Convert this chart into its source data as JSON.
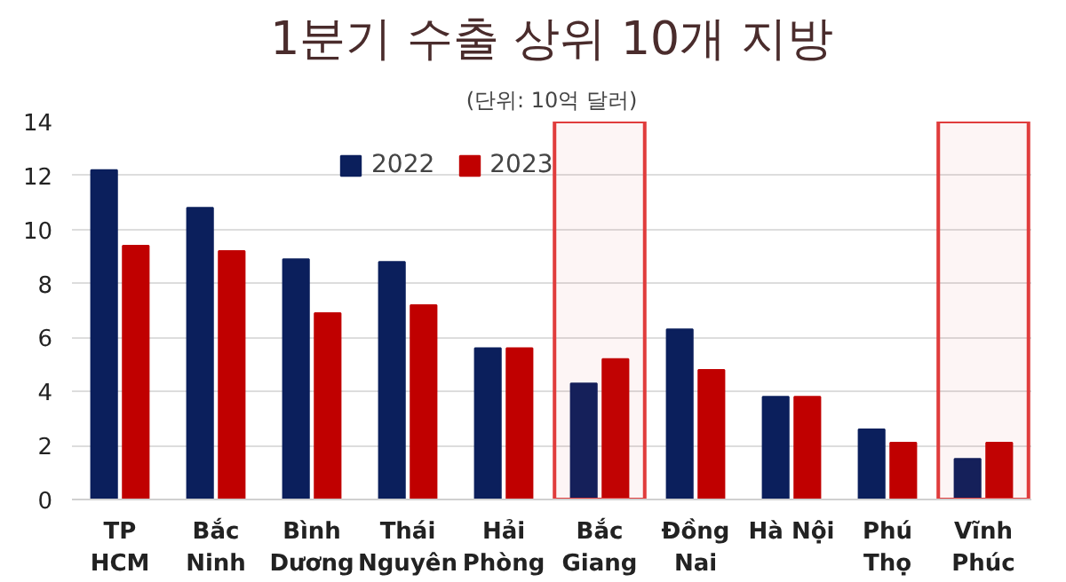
{
  "chart_data": {
    "type": "bar",
    "title": "1분기 수출 상위 10개 지방",
    "subtitle": "(단위: 10억 달러)",
    "categories": [
      "TP\nHCM",
      "Bắc\nNinh",
      "Bình\nDương",
      "Thái\nNguyên",
      "Hải\nPhòng",
      "Bắc\nGiang",
      "Đồng\nNai",
      "Hà Nội",
      "Phú\nThọ",
      "Vĩnh\nPhúc"
    ],
    "series": [
      {
        "name": "2022",
        "color": "#0b1f5c",
        "values": [
          12.2,
          10.8,
          8.9,
          8.8,
          5.6,
          4.3,
          6.3,
          3.8,
          2.6,
          1.5
        ]
      },
      {
        "name": "2023",
        "color": "#c00000",
        "values": [
          9.4,
          9.2,
          6.9,
          7.2,
          5.6,
          5.2,
          4.8,
          3.8,
          2.1,
          2.1
        ]
      }
    ],
    "bands": [
      {
        "axis": "x",
        "from": "Bắc\nGiang",
        "to": "Bắc\nGiang",
        "color": "#e03c3c"
      },
      {
        "axis": "x",
        "from": "Vĩnh\nPhúc",
        "to": "Vĩnh\nPhúc",
        "color": "#e03c3c"
      }
    ],
    "ylim": [
      0,
      14
    ],
    "yticks": [
      0,
      2,
      4,
      6,
      8,
      10,
      12,
      14
    ],
    "grid": "y",
    "legend": "top"
  }
}
